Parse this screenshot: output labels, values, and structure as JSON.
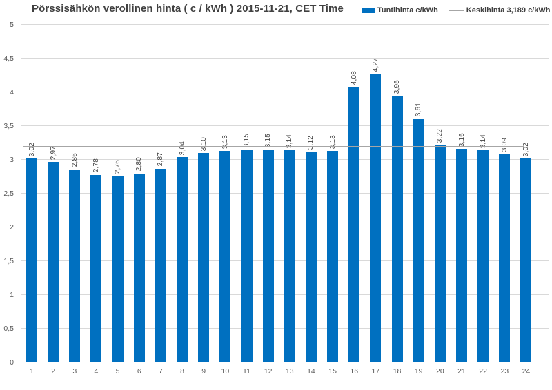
{
  "title": "Pörssisähkön verollinen hinta ( c / kWh ) 2015-11-21, CET Time",
  "legend": {
    "series1_label": "Tuntihinta c/kWh",
    "series2_label": "Keskihinta 3,189 c/kWh"
  },
  "colors": {
    "bar": "#0070C0",
    "average_line": "#A6A6A6",
    "gridline": "#D9D9D9",
    "title_text": "#404040",
    "axis_text": "#595959",
    "data_label_text": "#404040"
  },
  "chart_data": {
    "type": "bar",
    "title": "Pörssisähkön verollinen hinta ( c / kWh ) 2015-11-21, CET Time",
    "xlabel": "",
    "ylabel": "",
    "ylim": [
      0,
      5
    ],
    "grid": true,
    "legend_position": "top-right",
    "categories": [
      "1",
      "2",
      "3",
      "4",
      "5",
      "6",
      "7",
      "8",
      "9",
      "10",
      "11",
      "12",
      "13",
      "14",
      "15",
      "16",
      "17",
      "18",
      "19",
      "20",
      "21",
      "22",
      "23",
      "24"
    ],
    "series": [
      {
        "name": "Tuntihinta c/kWh",
        "type": "bar",
        "values": [
          3.02,
          2.97,
          2.86,
          2.78,
          2.76,
          2.8,
          2.87,
          3.04,
          3.1,
          3.13,
          3.15,
          3.15,
          3.14,
          3.12,
          3.13,
          4.08,
          4.27,
          3.95,
          3.61,
          3.22,
          3.16,
          3.14,
          3.09,
          3.02
        ],
        "labels": [
          "3,02",
          "2,97",
          "2,86",
          "2,78",
          "2,76",
          "2,80",
          "2,87",
          "3,04",
          "3,10",
          "3,13",
          "3,15",
          "3,15",
          "3,14",
          "3,12",
          "3,13",
          "4,08",
          "4,27",
          "3,95",
          "3,61",
          "3,22",
          "3,16",
          "3,14",
          "3,09",
          "3,02"
        ]
      },
      {
        "name": "Keskihinta 3,189 c/kWh",
        "type": "line",
        "value": 3.189
      }
    ],
    "yticks": {
      "values": [
        0,
        0.5,
        1,
        1.5,
        2,
        2.5,
        3,
        3.5,
        4,
        4.5,
        5
      ],
      "labels": [
        "0",
        "0,5",
        "1",
        "1,5",
        "2",
        "2,5",
        "3",
        "3,5",
        "4",
        "4,5",
        "5"
      ]
    }
  }
}
